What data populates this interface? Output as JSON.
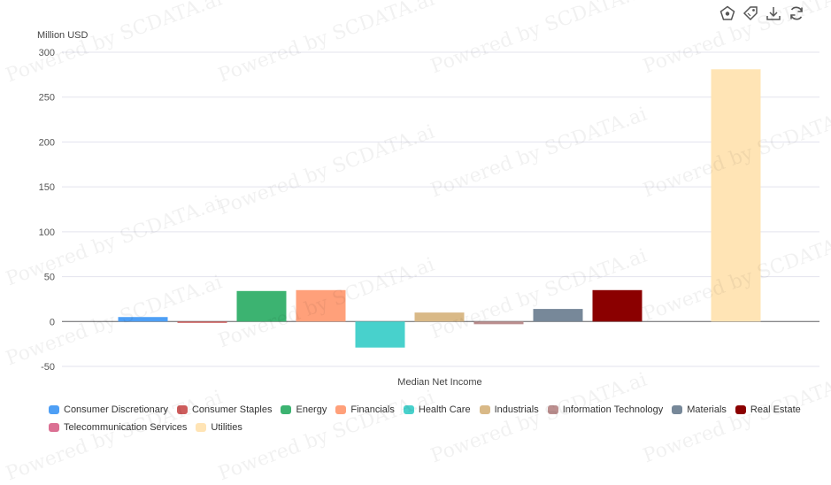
{
  "toolbar": {
    "icons": [
      "chart-type-icon",
      "tag-icon",
      "download-icon",
      "refresh-icon"
    ]
  },
  "watermark_text": "Powered by SCDATA.ai",
  "chart_data": {
    "type": "bar",
    "title": "",
    "ylabel": "Million USD",
    "xlabel": "Median Net Income",
    "categories": [
      "Median Net Income"
    ],
    "ylim": [
      -50,
      300
    ],
    "yticks": [
      300,
      250,
      200,
      150,
      100,
      50,
      0,
      -50
    ],
    "grid": true,
    "legend_position": "bottom",
    "series": [
      {
        "name": "Consumer Discretionary",
        "color": "#4E9FF5",
        "values": [
          5
        ]
      },
      {
        "name": "Consumer Staples",
        "color": "#CD5C5C",
        "values": [
          -0.5
        ]
      },
      {
        "name": "Energy",
        "color": "#3CB371",
        "values": [
          34
        ]
      },
      {
        "name": "Financials",
        "color": "#FFA07A",
        "values": [
          35
        ]
      },
      {
        "name": "Health Care",
        "color": "#48D1CC",
        "values": [
          -29
        ]
      },
      {
        "name": "Industrials",
        "color": "#D9B987",
        "values": [
          10
        ]
      },
      {
        "name": "Information Technology",
        "color": "#BC8F8F",
        "values": [
          -3
        ]
      },
      {
        "name": "Materials",
        "color": "#778899",
        "values": [
          14
        ]
      },
      {
        "name": "Real Estate",
        "color": "#8B0000",
        "values": [
          35
        ]
      },
      {
        "name": "Telecommunication Services",
        "color": "#DB7093",
        "values": [
          0
        ]
      },
      {
        "name": "Utilities",
        "color": "#FFE4B5",
        "values": [
          281
        ]
      }
    ]
  }
}
